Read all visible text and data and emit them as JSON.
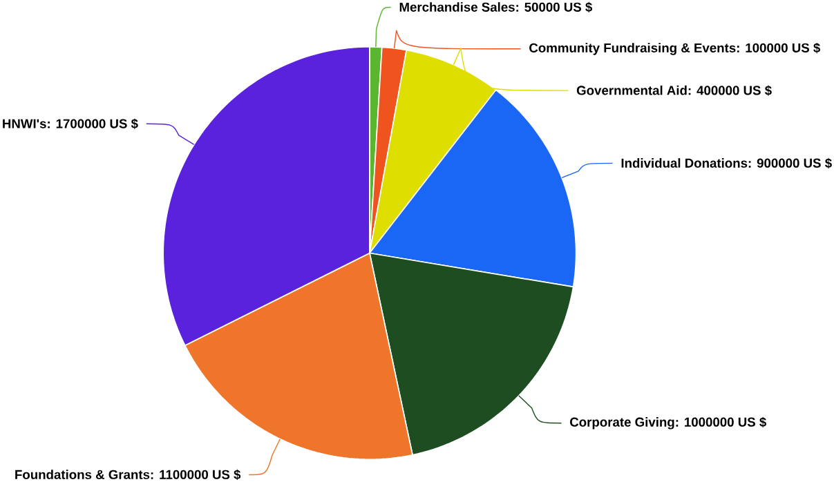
{
  "chart_data": {
    "type": "pie",
    "categories": [
      "Merchandise Sales",
      "Community Fundraising & Events",
      "Governmental Aid",
      "Individual Donations",
      "Corporate Giving",
      "Foundations & Grants",
      "HNWI's"
    ],
    "values": [
      50000,
      100000,
      400000,
      900000,
      1000000,
      1100000,
      1700000
    ],
    "value_labels": [
      ": 50000 US $",
      ": 100000 US $",
      ": 400000 US $",
      ": 900000 US $",
      ": 1000000 US $",
      ": 1100000 US $",
      ": 1700000 US $"
    ],
    "colors": [
      "#5cb531",
      "#f0541e",
      "#dede00",
      "#1a66f5",
      "#1d4d20",
      "#ee752a",
      "#5b22de"
    ]
  }
}
